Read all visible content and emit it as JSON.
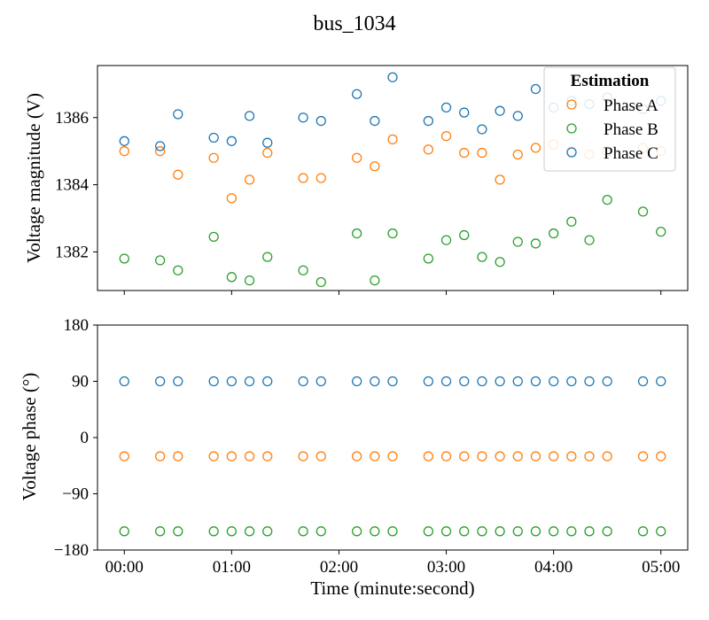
{
  "chart_data": {
    "title": "bus_1034",
    "xlabel": "Time (minute:second)",
    "x_ticks": [
      "00:00",
      "01:00",
      "02:00",
      "03:00",
      "04:00",
      "05:00"
    ],
    "x_tick_values": [
      0,
      60,
      120,
      180,
      240,
      300
    ],
    "xlim": [
      -15,
      315
    ],
    "x": [
      0,
      20,
      30,
      50,
      60,
      70,
      80,
      100,
      110,
      130,
      140,
      150,
      170,
      180,
      190,
      200,
      210,
      220,
      230,
      240,
      250,
      260,
      270,
      290,
      300
    ],
    "legend": {
      "title": "Estimation",
      "position": "top-right",
      "entries": [
        "Phase A",
        "Phase B",
        "Phase C"
      ]
    },
    "colors": {
      "Phase A": "#ff7f0e",
      "Phase B": "#2ca02c",
      "Phase C": "#1f77b4"
    },
    "charts": [
      {
        "type": "scatter",
        "ylabel": "Voltage magnitude (V)",
        "ylim": [
          1380.85,
          1387.55
        ],
        "y_ticks": [
          "1382",
          "1384",
          "1386"
        ],
        "y_tick_values": [
          1382,
          1384,
          1386
        ],
        "series": [
          {
            "name": "Phase A",
            "values": [
              1385.0,
              1385.0,
              1384.3,
              1384.8,
              1383.6,
              1384.15,
              1384.95,
              1384.2,
              1384.2,
              1384.8,
              1384.55,
              1385.35,
              1385.05,
              1385.45,
              1384.95,
              1384.95,
              1384.15,
              1384.9,
              1385.1,
              1385.2,
              1385.0,
              1384.9,
              1385.0,
              1385.1,
              1385.0
            ]
          },
          {
            "name": "Phase B",
            "values": [
              1381.8,
              1381.75,
              1381.45,
              1382.45,
              1381.25,
              1381.15,
              1381.85,
              1381.45,
              1381.1,
              1382.55,
              1381.15,
              1382.55,
              1381.8,
              1382.35,
              1382.5,
              1381.85,
              1381.7,
              1382.3,
              1382.25,
              1382.55,
              1382.9,
              1382.35,
              1383.55,
              1383.2,
              1382.6
            ]
          },
          {
            "name": "Phase C",
            "values": [
              1385.3,
              1385.15,
              1386.1,
              1385.4,
              1385.3,
              1386.05,
              1385.25,
              1386.0,
              1385.9,
              1386.7,
              1385.9,
              1387.2,
              1385.9,
              1386.3,
              1386.15,
              1385.65,
              1386.2,
              1386.05,
              1386.85,
              1386.3,
              1386.5,
              1386.4,
              1386.6,
              1386.25,
              1386.5
            ]
          }
        ]
      },
      {
        "type": "scatter",
        "ylabel": "Voltage phase (°)",
        "ylim": [
          -180,
          180
        ],
        "y_ticks": [
          "−180",
          "−90",
          "0",
          "90",
          "180"
        ],
        "y_tick_values": [
          -180,
          -90,
          0,
          90,
          180
        ],
        "series": [
          {
            "name": "Phase A",
            "values": [
              -30,
              -30,
              -30,
              -30,
              -30,
              -30,
              -30,
              -30,
              -30,
              -30,
              -30,
              -30,
              -30,
              -30,
              -30,
              -30,
              -30,
              -30,
              -30,
              -30,
              -30,
              -30,
              -30,
              -30,
              -30
            ]
          },
          {
            "name": "Phase B",
            "values": [
              -150,
              -150,
              -150,
              -150,
              -150,
              -150,
              -150,
              -150,
              -150,
              -150,
              -150,
              -150,
              -150,
              -150,
              -150,
              -150,
              -150,
              -150,
              -150,
              -150,
              -150,
              -150,
              -150,
              -150,
              -150
            ]
          },
          {
            "name": "Phase C",
            "values": [
              90,
              90,
              90,
              90,
              90,
              90,
              90,
              90,
              90,
              90,
              90,
              90,
              90,
              90,
              90,
              90,
              90,
              90,
              90,
              90,
              90,
              90,
              90,
              90,
              90
            ]
          }
        ]
      }
    ]
  }
}
